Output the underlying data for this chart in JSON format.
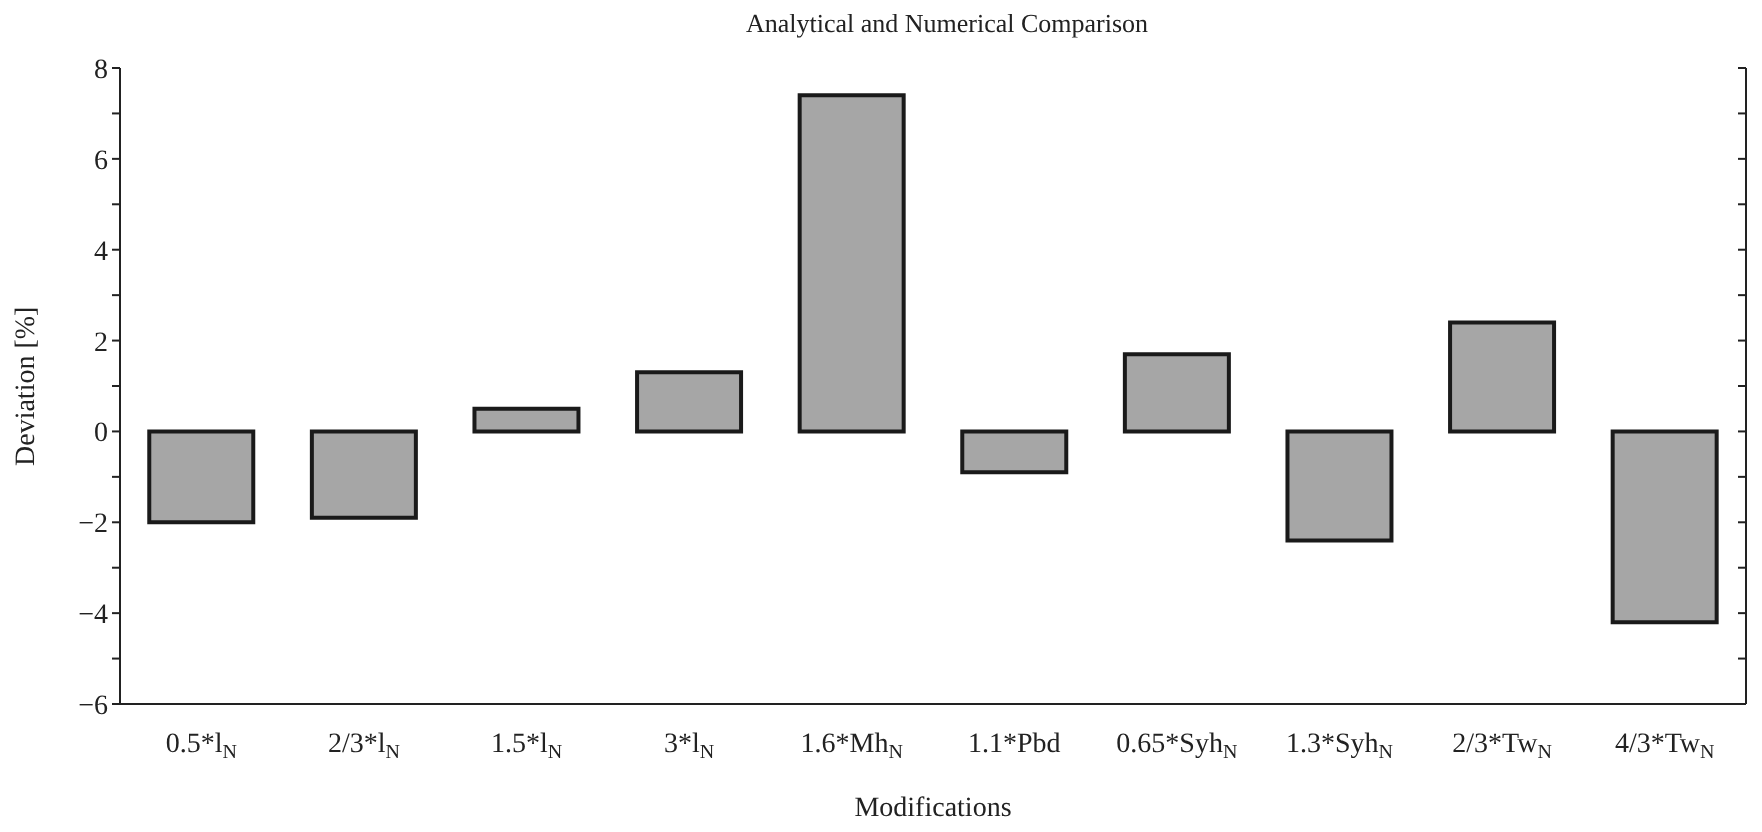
{
  "chart_data": {
    "type": "bar",
    "title": "Analytical and Numerical Comparison",
    "xlabel": "Modifications",
    "ylabel": "Deviation [%]",
    "categories": [
      "0.5*l$_{N}$",
      "2/3*l$_{N}$",
      "1.5*l$_{N}$",
      "3*l$_{N}$",
      "1.6*Mh$_{N}$",
      "1.1*Pbd",
      "0.65*Syh$_{N}$",
      "1.3*Syh$_{N}$",
      "2/3*Tw$_{N}$",
      "4/3*Tw$_{N}$"
    ],
    "values": [
      -2.0,
      -1.9,
      0.5,
      1.3,
      7.4,
      -0.9,
      1.7,
      -2.4,
      2.4,
      -4.2
    ],
    "color": "#a6a6a6",
    "ylim": [
      -6,
      8
    ],
    "yticks": [
      -6,
      {
        "value": -5,
        "label": null
      },
      -4,
      {
        "value": -3,
        "label": null
      },
      -2,
      {
        "value": -1,
        "label": null
      },
      0,
      {
        "value": 1,
        "label": null
      },
      2,
      {
        "value": 3,
        "label": null
      },
      4,
      {
        "value": 5,
        "label": null
      },
      6,
      {
        "value": 7,
        "label": null
      },
      8
    ],
    "grid": false
  }
}
